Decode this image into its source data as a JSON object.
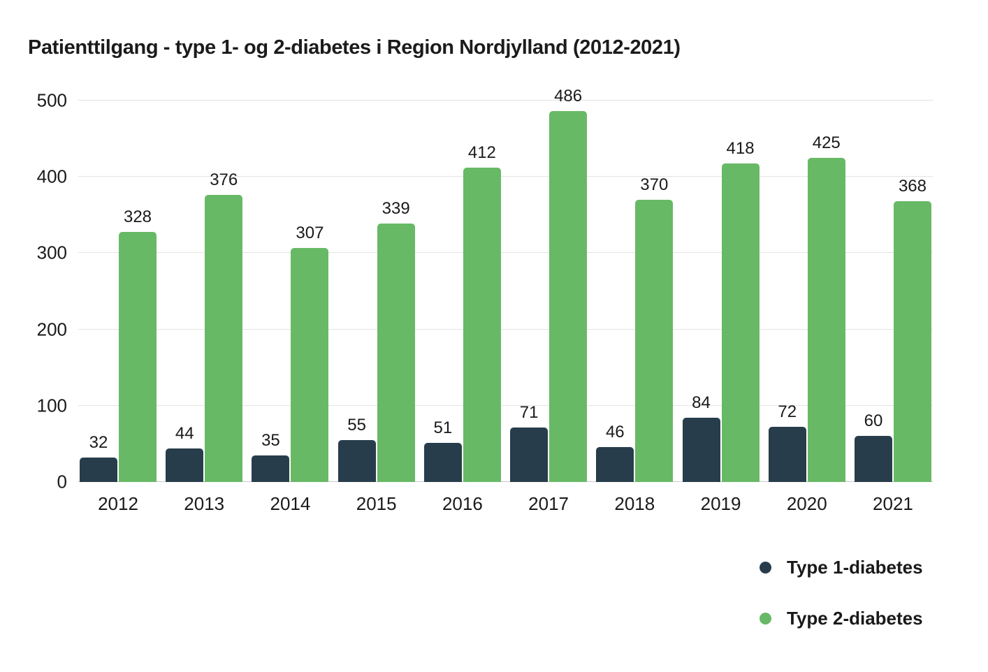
{
  "chart_data": {
    "type": "bar",
    "title": "Patienttilgang - type 1- og 2-diabetes i Region Nordjylland (2012-2021)",
    "categories": [
      "2012",
      "2013",
      "2014",
      "2015",
      "2016",
      "2017",
      "2018",
      "2019",
      "2020",
      "2021"
    ],
    "series": [
      {
        "name": "Type 1-diabetes",
        "color": "#283d4b",
        "values": [
          32,
          44,
          35,
          55,
          51,
          71,
          46,
          84,
          72,
          60
        ]
      },
      {
        "name": "Type 2-diabetes",
        "color": "#68b966",
        "values": [
          328,
          376,
          307,
          339,
          412,
          486,
          370,
          418,
          425,
          368
        ]
      }
    ],
    "xlabel": "",
    "ylabel": "",
    "ylim": [
      0,
      500
    ],
    "yticks": [
      0,
      100,
      200,
      300,
      400,
      500
    ],
    "grid": true,
    "value_labels": true,
    "legend_position": "bottom-right",
    "colors": {
      "text": "#1a1a1a",
      "gridline": "#e3e3e3",
      "axis_line": "#cccccc",
      "background": "#ffffff"
    }
  }
}
